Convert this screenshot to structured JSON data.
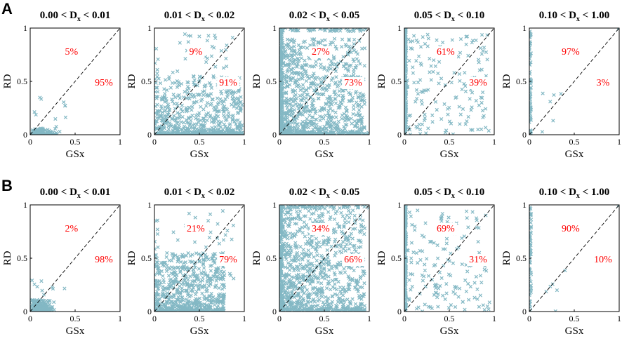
{
  "figure": {
    "colors": {
      "points": "#1f7f95",
      "percent_text": "#ff0000",
      "axes": "#000000"
    },
    "rows": [
      {
        "label": "A",
        "panels": [
          {
            "title_left": "0.00 < D",
            "title_sub": "x",
            "title_right": " < 0.01",
            "pct_above": "5%",
            "pct_below": "95%",
            "cluster": "tiny"
          },
          {
            "title_left": "0.01 < D",
            "title_sub": "x",
            "title_right": " < 0.02",
            "pct_above": "9%",
            "pct_below": "91%",
            "cluster": "low"
          },
          {
            "title_left": "0.02 < D",
            "title_sub": "x",
            "title_right": " < 0.05",
            "pct_above": "27%",
            "pct_below": "73%",
            "cluster": "wide"
          },
          {
            "title_left": "0.05 < D",
            "title_sub": "x",
            "title_right": " < 0.10",
            "pct_above": "61%",
            "pct_below": "39%",
            "cluster": "sparse"
          },
          {
            "title_left": "0.10 < D",
            "title_sub": "x",
            "title_right": " < 1.00",
            "pct_above": "97%",
            "pct_below": "3%",
            "cluster": "axis"
          }
        ]
      },
      {
        "label": "B",
        "panels": [
          {
            "title_left": "0.00 < D",
            "title_sub": "x",
            "title_right": " < 0.01",
            "pct_above": "2%",
            "pct_below": "98%",
            "cluster": "tiny"
          },
          {
            "title_left": "0.01 < D",
            "title_sub": "x",
            "title_right": " < 0.02",
            "pct_above": "21%",
            "pct_below": "79%",
            "cluster": "low"
          },
          {
            "title_left": "0.02 < D",
            "title_sub": "x",
            "title_right": " < 0.05",
            "pct_above": "34%",
            "pct_below": "66%",
            "cluster": "wide"
          },
          {
            "title_left": "0.05 < D",
            "title_sub": "x",
            "title_right": " < 0.10",
            "pct_above": "69%",
            "pct_below": "31%",
            "cluster": "sparse"
          },
          {
            "title_left": "0.10 < D",
            "title_sub": "x",
            "title_right": " < 1.00",
            "pct_above": "90%",
            "pct_below": "10%",
            "cluster": "axis"
          }
        ]
      }
    ]
  },
  "chart_data": {
    "type": "scatter",
    "layout": "2 rows x 5 panels",
    "xlabel": "GSx",
    "ylabel": "RD",
    "xlim": [
      0,
      1
    ],
    "ylim": [
      0,
      1
    ],
    "xticks": [
      "0",
      "0.5",
      "1"
    ],
    "yticks": [
      "0",
      "0.5",
      "1"
    ],
    "reference_line": "y = x (dashed)",
    "marker": "x",
    "series_color": "#1f7f95",
    "percent_note": "upper value = share of points above y=x, lower value = share below"
  }
}
